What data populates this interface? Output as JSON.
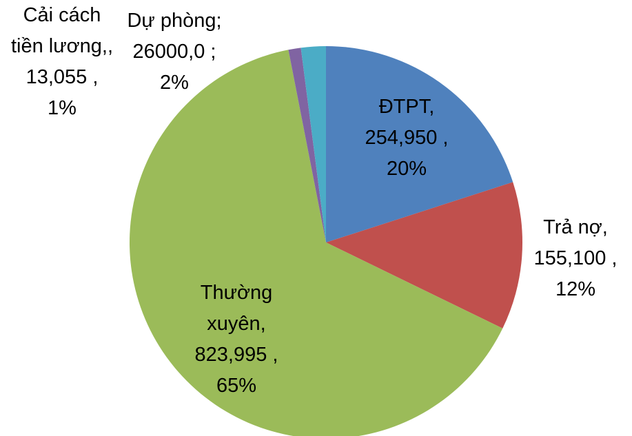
{
  "chart_data": {
    "type": "pie",
    "categories": [
      "ĐTPT,",
      "Trả nợ,",
      "Thường xuyên,",
      "Cải cách tiền lương,,",
      "Dự phòng;"
    ],
    "values": [
      254950,
      155100,
      823995,
      13055,
      26000
    ],
    "value_labels": [
      "254,950 ,",
      "155,100 ,",
      "823,995 ,",
      "13,055 ,",
      "26000,0 ;"
    ],
    "percent_labels": [
      "20%",
      "12%",
      "65%",
      "1%",
      "2%"
    ],
    "colors": [
      "#4F81BD",
      "#C0504D",
      "#9BBB59",
      "#8064A2",
      "#4BACC6"
    ]
  }
}
